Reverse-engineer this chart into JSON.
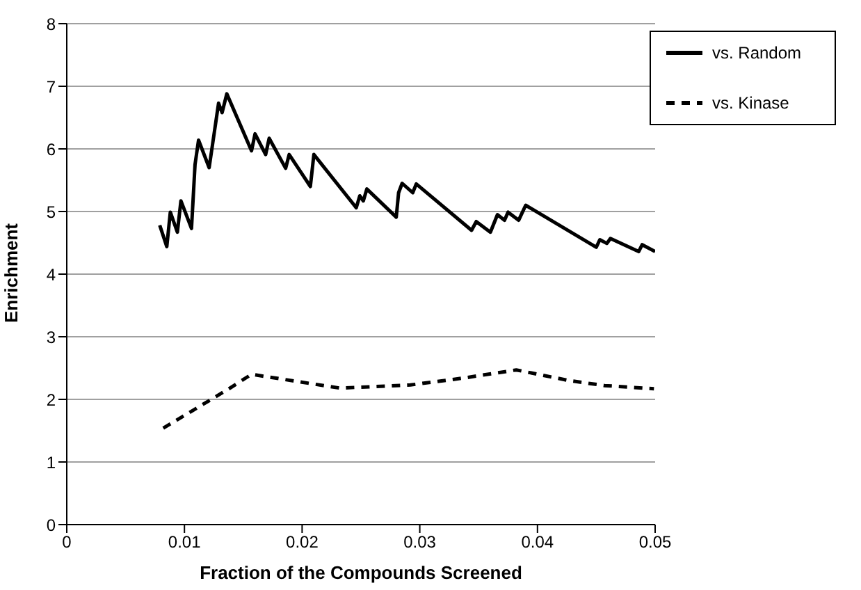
{
  "chart_data": {
    "type": "line",
    "xlabel": "Fraction of the Compounds Screened",
    "ylabel": "Enrichment",
    "xlim": [
      0,
      0.05
    ],
    "xticks": [
      0,
      0.01,
      0.02,
      0.03,
      0.04,
      0.05
    ],
    "ylim": [
      0,
      8
    ],
    "yticks": [
      0,
      1,
      2,
      3,
      4,
      5,
      6,
      7,
      8
    ],
    "grid": "y",
    "legend": "top right",
    "marker": "none",
    "series": [
      {
        "name": "vs. Random",
        "color": "#000000",
        "line_style": "solid",
        "x": [
          0.0079,
          0.0085,
          0.0088,
          0.0094,
          0.0097,
          0.0106,
          0.0109,
          0.0112,
          0.0121,
          0.0129,
          0.0132,
          0.0136,
          0.0157,
          0.016,
          0.0169,
          0.0172,
          0.0186,
          0.0189,
          0.0207,
          0.021,
          0.0246,
          0.0249,
          0.0252,
          0.0255,
          0.028,
          0.0282,
          0.0285,
          0.0294,
          0.0297,
          0.0344,
          0.0348,
          0.036,
          0.0366,
          0.0372,
          0.0375,
          0.0384,
          0.039,
          0.045,
          0.0453,
          0.0459,
          0.0462,
          0.0486,
          0.0489,
          0.05
        ],
        "values": [
          4.78,
          4.44,
          4.99,
          4.67,
          5.17,
          4.73,
          5.75,
          6.14,
          5.7,
          6.73,
          6.58,
          6.88,
          5.97,
          6.24,
          5.91,
          6.17,
          5.69,
          5.91,
          5.4,
          5.91,
          5.06,
          5.25,
          5.17,
          5.36,
          4.91,
          5.3,
          5.45,
          5.3,
          5.44,
          4.7,
          4.84,
          4.67,
          4.95,
          4.86,
          4.99,
          4.86,
          5.1,
          4.43,
          4.55,
          4.49,
          4.57,
          4.36,
          4.47,
          4.36
        ]
      },
      {
        "name": "vs. Kinase",
        "color": "#000000",
        "line_style": "dashed",
        "x": [
          0.0082,
          0.0137,
          0.0157,
          0.0232,
          0.0292,
          0.0337,
          0.0382,
          0.0427,
          0.0457,
          0.0499
        ],
        "values": [
          1.54,
          2.16,
          2.4,
          2.18,
          2.23,
          2.34,
          2.47,
          2.3,
          2.22,
          2.17
        ]
      }
    ]
  }
}
